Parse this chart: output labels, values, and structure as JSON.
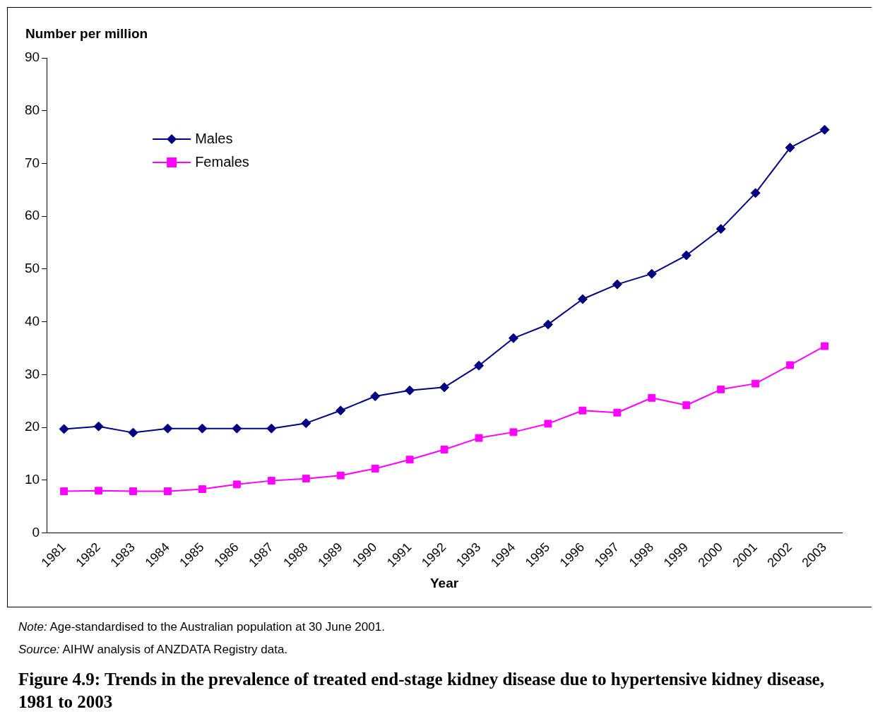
{
  "chart_data": {
    "type": "line",
    "title": "Figure 4.9: Trends in the prevalence of treated end-stage kidney disease due to hypertensive kidney disease, 1981 to 2003",
    "xlabel": "Year",
    "ylabel": "Number per million",
    "annotations": [
      "Note: Age-standardised to the Australian population at 30 June 2001.",
      "Source: AIHW analysis of ANZDATA Registry data."
    ],
    "categories": [
      "1981",
      "1982",
      "1983",
      "1984",
      "1985",
      "1986",
      "1987",
      "1988",
      "1989",
      "1990",
      "1991",
      "1992",
      "1993",
      "1994",
      "1995",
      "1996",
      "1997",
      "1998",
      "1999",
      "2000",
      "2001",
      "2002",
      "2003"
    ],
    "series": [
      {
        "name": "Males",
        "color": "#000080",
        "marker": "diamond",
        "values": [
          19.7,
          20.2,
          19.0,
          19.8,
          19.8,
          19.8,
          19.8,
          20.8,
          23.2,
          25.9,
          27.0,
          27.6,
          31.7,
          36.9,
          39.5,
          44.3,
          47.1,
          49.1,
          52.6,
          57.6,
          64.4,
          73.0,
          76.4
        ]
      },
      {
        "name": "Females",
        "color": "#ff00ff",
        "marker": "square",
        "values": [
          7.9,
          8.0,
          7.9,
          7.9,
          8.3,
          9.2,
          9.9,
          10.3,
          10.9,
          12.2,
          13.9,
          15.8,
          18.0,
          19.1,
          20.7,
          23.2,
          22.8,
          25.6,
          24.2,
          27.2,
          28.3,
          31.8,
          35.4
        ]
      }
    ],
    "ylim": [
      0,
      90
    ],
    "yticks": [
      0,
      10,
      20,
      30,
      40,
      50,
      60,
      70,
      80,
      90
    ],
    "grid": false,
    "legend": "top left",
    "line_style": "solid"
  }
}
